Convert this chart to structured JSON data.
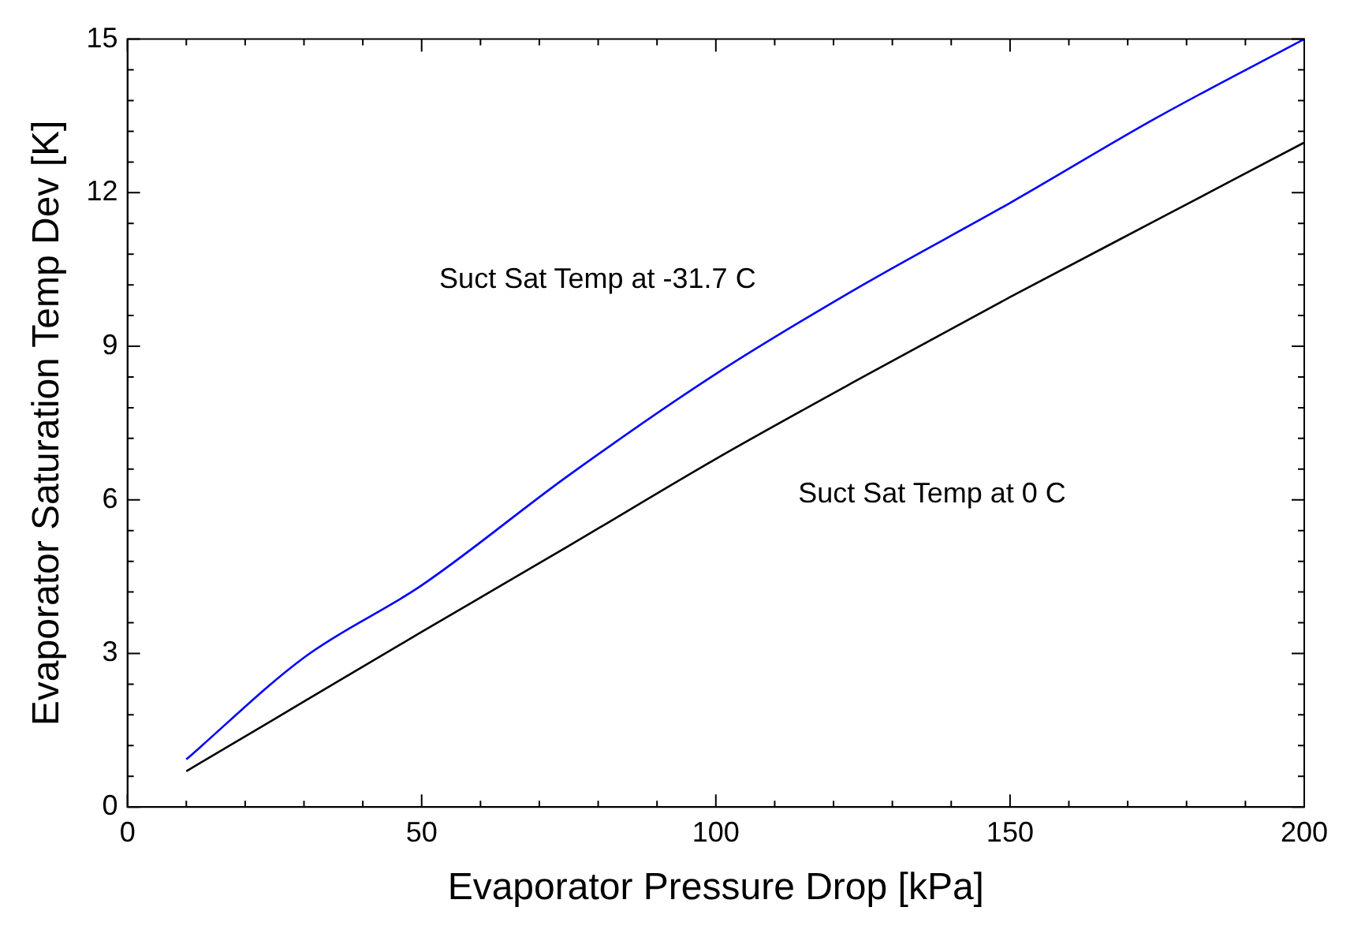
{
  "chart_data": {
    "type": "line",
    "xlabel": "Evaporator Pressure Drop [kPa]",
    "ylabel": "Evaporator Saturation Temp Dev [K]",
    "x": [
      10,
      30,
      50,
      75,
      100,
      125,
      150,
      175,
      200
    ],
    "series": [
      {
        "name": "Suct Sat Temp at -31.7 C",
        "color": "#0000ff",
        "values": [
          0.93,
          2.92,
          4.33,
          6.48,
          8.46,
          10.2,
          11.8,
          13.47,
          15
        ]
      },
      {
        "name": "Suct Sat Temp at 0 C",
        "color": "#000000",
        "values": [
          0.7,
          2.06,
          3.42,
          5.1,
          6.8,
          8.4,
          9.96,
          11.47,
          12.98
        ]
      }
    ],
    "xlim": [
      0,
      200
    ],
    "xticks": [
      0,
      {
        "value": 10,
        "label": null
      },
      {
        "value": 20,
        "label": null
      },
      {
        "value": 30,
        "label": null
      },
      {
        "value": 40,
        "label": null
      },
      50,
      {
        "value": 60,
        "label": null
      },
      {
        "value": 70,
        "label": null
      },
      {
        "value": 80,
        "label": null
      },
      {
        "value": 90,
        "label": null
      },
      100,
      {
        "value": 110,
        "label": null
      },
      {
        "value": 120,
        "label": null
      },
      {
        "value": 130,
        "label": null
      },
      {
        "value": 140,
        "label": null
      },
      150,
      {
        "value": 160,
        "label": null
      },
      {
        "value": 170,
        "label": null
      },
      {
        "value": 180,
        "label": null
      },
      {
        "value": 190,
        "label": null
      },
      200
    ],
    "ylim": [
      0,
      15
    ],
    "yticks": [
      0,
      {
        "value": 0.6,
        "label": null
      },
      {
        "value": 1.2,
        "label": null
      },
      {
        "value": 1.8,
        "label": null
      },
      {
        "value": 2.4,
        "label": null
      },
      3,
      {
        "value": 3.6,
        "label": null
      },
      {
        "value": 4.2,
        "label": null
      },
      {
        "value": 4.8,
        "label": null
      },
      {
        "value": 5.4,
        "label": null
      },
      6,
      {
        "value": 6.6,
        "label": null
      },
      {
        "value": 7.2,
        "label": null
      },
      {
        "value": 7.8,
        "label": null
      },
      {
        "value": 8.4,
        "label": null
      },
      9,
      {
        "value": 9.6,
        "label": null
      },
      {
        "value": 10.2,
        "label": null
      },
      {
        "value": 10.8,
        "label": null
      },
      {
        "value": 11.4,
        "label": null
      },
      12,
      {
        "value": 12.6,
        "label": null
      },
      {
        "value": 13.2,
        "label": null
      },
      {
        "value": 13.8,
        "label": null
      },
      {
        "value": 14.4,
        "label": null
      },
      15
    ],
    "grid": false,
    "legend": false,
    "marker": "none",
    "line_style": "solid"
  }
}
